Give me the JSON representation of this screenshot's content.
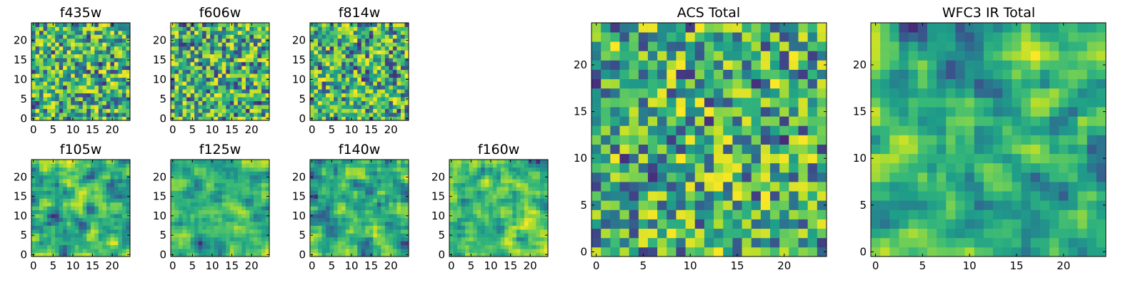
{
  "chart_data": [
    {
      "id": "f435w",
      "type": "heatmap",
      "title": "f435w",
      "grid": [
        25,
        25
      ],
      "colormap": "viridis",
      "xlim": [
        -0.5,
        24.5
      ],
      "ylim": [
        -0.5,
        24.5
      ],
      "xticks": [
        "0",
        "5",
        "10",
        "15",
        "20"
      ],
      "yticks": [
        "0",
        "5",
        "10",
        "15",
        "20"
      ]
    },
    {
      "id": "f606w",
      "type": "heatmap",
      "title": "f606w",
      "grid": [
        25,
        25
      ],
      "colormap": "viridis",
      "xlim": [
        -0.5,
        24.5
      ],
      "ylim": [
        -0.5,
        24.5
      ],
      "xticks": [
        "0",
        "5",
        "10",
        "15",
        "20"
      ],
      "yticks": [
        "0",
        "5",
        "10",
        "15",
        "20"
      ]
    },
    {
      "id": "f814w",
      "type": "heatmap",
      "title": "f814w",
      "grid": [
        25,
        25
      ],
      "colormap": "viridis",
      "xlim": [
        -0.5,
        24.5
      ],
      "ylim": [
        -0.5,
        24.5
      ],
      "xticks": [
        "0",
        "5",
        "10",
        "15",
        "20"
      ],
      "yticks": [
        "0",
        "5",
        "10",
        "15",
        "20"
      ]
    },
    {
      "id": "f105w",
      "type": "heatmap",
      "title": "f105w",
      "grid": [
        25,
        25
      ],
      "colormap": "viridis",
      "xlim": [
        -0.5,
        24.5
      ],
      "ylim": [
        -0.5,
        24.5
      ],
      "xticks": [
        "0",
        "5",
        "10",
        "15",
        "20"
      ],
      "yticks": [
        "0",
        "5",
        "10",
        "15",
        "20"
      ]
    },
    {
      "id": "f125w",
      "type": "heatmap",
      "title": "f125w",
      "grid": [
        25,
        25
      ],
      "colormap": "viridis",
      "xlim": [
        -0.5,
        24.5
      ],
      "ylim": [
        -0.5,
        24.5
      ],
      "xticks": [
        "0",
        "5",
        "10",
        "15",
        "20"
      ],
      "yticks": [
        "0",
        "5",
        "10",
        "15",
        "20"
      ]
    },
    {
      "id": "f140w",
      "type": "heatmap",
      "title": "f140w",
      "grid": [
        25,
        25
      ],
      "colormap": "viridis",
      "xlim": [
        -0.5,
        24.5
      ],
      "ylim": [
        -0.5,
        24.5
      ],
      "xticks": [
        "0",
        "5",
        "10",
        "15",
        "20"
      ],
      "yticks": [
        "0",
        "5",
        "10",
        "15",
        "20"
      ]
    },
    {
      "id": "f160w",
      "type": "heatmap",
      "title": "f160w",
      "grid": [
        25,
        25
      ],
      "colormap": "viridis",
      "xlim": [
        -0.5,
        24.5
      ],
      "ylim": [
        -0.5,
        24.5
      ],
      "xticks": [
        "0",
        "5",
        "10",
        "15",
        "20"
      ],
      "yticks": [
        "0",
        "5",
        "10",
        "15",
        "20"
      ]
    },
    {
      "id": "acs-total",
      "type": "heatmap",
      "title": "ACS Total",
      "grid": [
        25,
        25
      ],
      "colormap": "viridis",
      "xlim": [
        -0.5,
        24.5
      ],
      "ylim": [
        -0.5,
        24.5
      ],
      "xticks": [
        "0",
        "5",
        "10",
        "15",
        "20"
      ],
      "yticks": [
        "0",
        "5",
        "10",
        "15",
        "20"
      ]
    },
    {
      "id": "wfc3-ir-total",
      "type": "heatmap",
      "title": "WFC3 IR Total",
      "grid": [
        25,
        25
      ],
      "colormap": "viridis",
      "xlim": [
        -0.5,
        24.5
      ],
      "ylim": [
        -0.5,
        24.5
      ],
      "xticks": [
        "0",
        "5",
        "10",
        "15",
        "20"
      ],
      "yticks": [
        "0",
        "5",
        "10",
        "15",
        "20"
      ]
    }
  ]
}
